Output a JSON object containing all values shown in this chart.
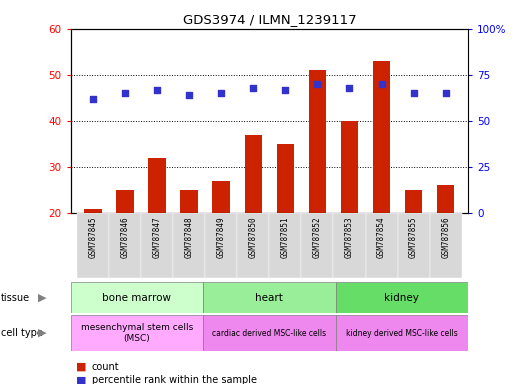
{
  "title": "GDS3974 / ILMN_1239117",
  "samples": [
    "GSM787845",
    "GSM787846",
    "GSM787847",
    "GSM787848",
    "GSM787849",
    "GSM787850",
    "GSM787851",
    "GSM787852",
    "GSM787853",
    "GSM787854",
    "GSM787855",
    "GSM787856"
  ],
  "counts": [
    21,
    25,
    32,
    25,
    27,
    37,
    35,
    51,
    40,
    53,
    25,
    26
  ],
  "percentiles": [
    62,
    65,
    67,
    64,
    65,
    68,
    67,
    70,
    68,
    70,
    65,
    65
  ],
  "ylim_left": [
    20,
    60
  ],
  "ylim_right": [
    0,
    100
  ],
  "yticks_left": [
    20,
    30,
    40,
    50,
    60
  ],
  "yticks_right": [
    0,
    25,
    50,
    75,
    100
  ],
  "ytick_right_labels": [
    "0",
    "25",
    "50",
    "75",
    "100%"
  ],
  "bar_color": "#cc2200",
  "dot_color": "#3333cc",
  "tissue_labels": [
    "bone marrow",
    "heart",
    "kidney"
  ],
  "tissue_starts": [
    0,
    4,
    8
  ],
  "tissue_ends": [
    4,
    8,
    12
  ],
  "tissue_colors": [
    "#ccffcc",
    "#99ee99",
    "#66dd66"
  ],
  "celltype_labels": [
    "mesenchymal stem cells\n(MSC)",
    "cardiac derived MSC-like cells",
    "kidney derived MSC-like cells"
  ],
  "celltype_colors": [
    "#ffaaff",
    "#ee88ee",
    "#ee88ee"
  ],
  "bg_color": "#d8d8d8",
  "legend_count_label": "count",
  "legend_pct_label": "percentile rank within the sample"
}
